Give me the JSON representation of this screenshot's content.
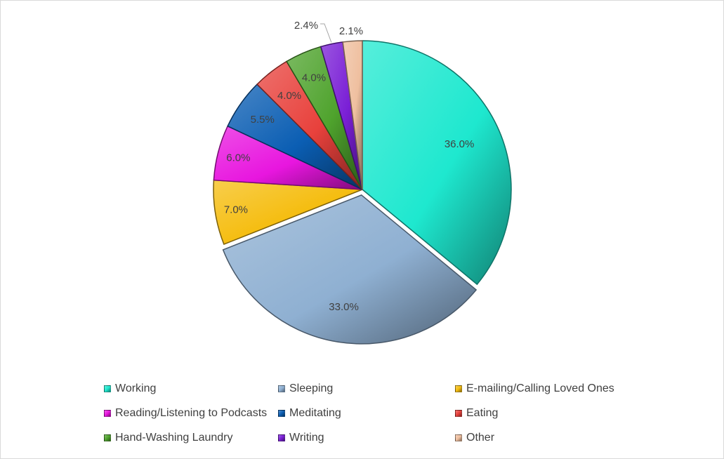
{
  "chart_data": {
    "type": "pie",
    "title": "",
    "legend_position": "bottom",
    "categories": [
      "Working",
      "Sleeping",
      "E-mailing/Calling Loved Ones",
      "Reading/Listening to Podcasts",
      "Meditating",
      "Eating",
      "Hand-Washing Laundry",
      "Writing",
      "Other"
    ],
    "values": [
      36.0,
      33.0,
      7.0,
      6.0,
      5.5,
      4.0,
      4.0,
      2.4,
      2.1
    ],
    "data_labels": [
      "36.0%",
      "33.0%",
      "7.0%",
      "6.0%",
      "5.5%",
      "4.0%",
      "4.0%",
      "2.4%",
      "2.1%"
    ],
    "colors": [
      "#1ee8cf",
      "#8fb0d2",
      "#f5bd10",
      "#e816df",
      "#0b5eb3",
      "#e8413c",
      "#4fa32d",
      "#7a1fd6",
      "#efbf9f"
    ]
  }
}
